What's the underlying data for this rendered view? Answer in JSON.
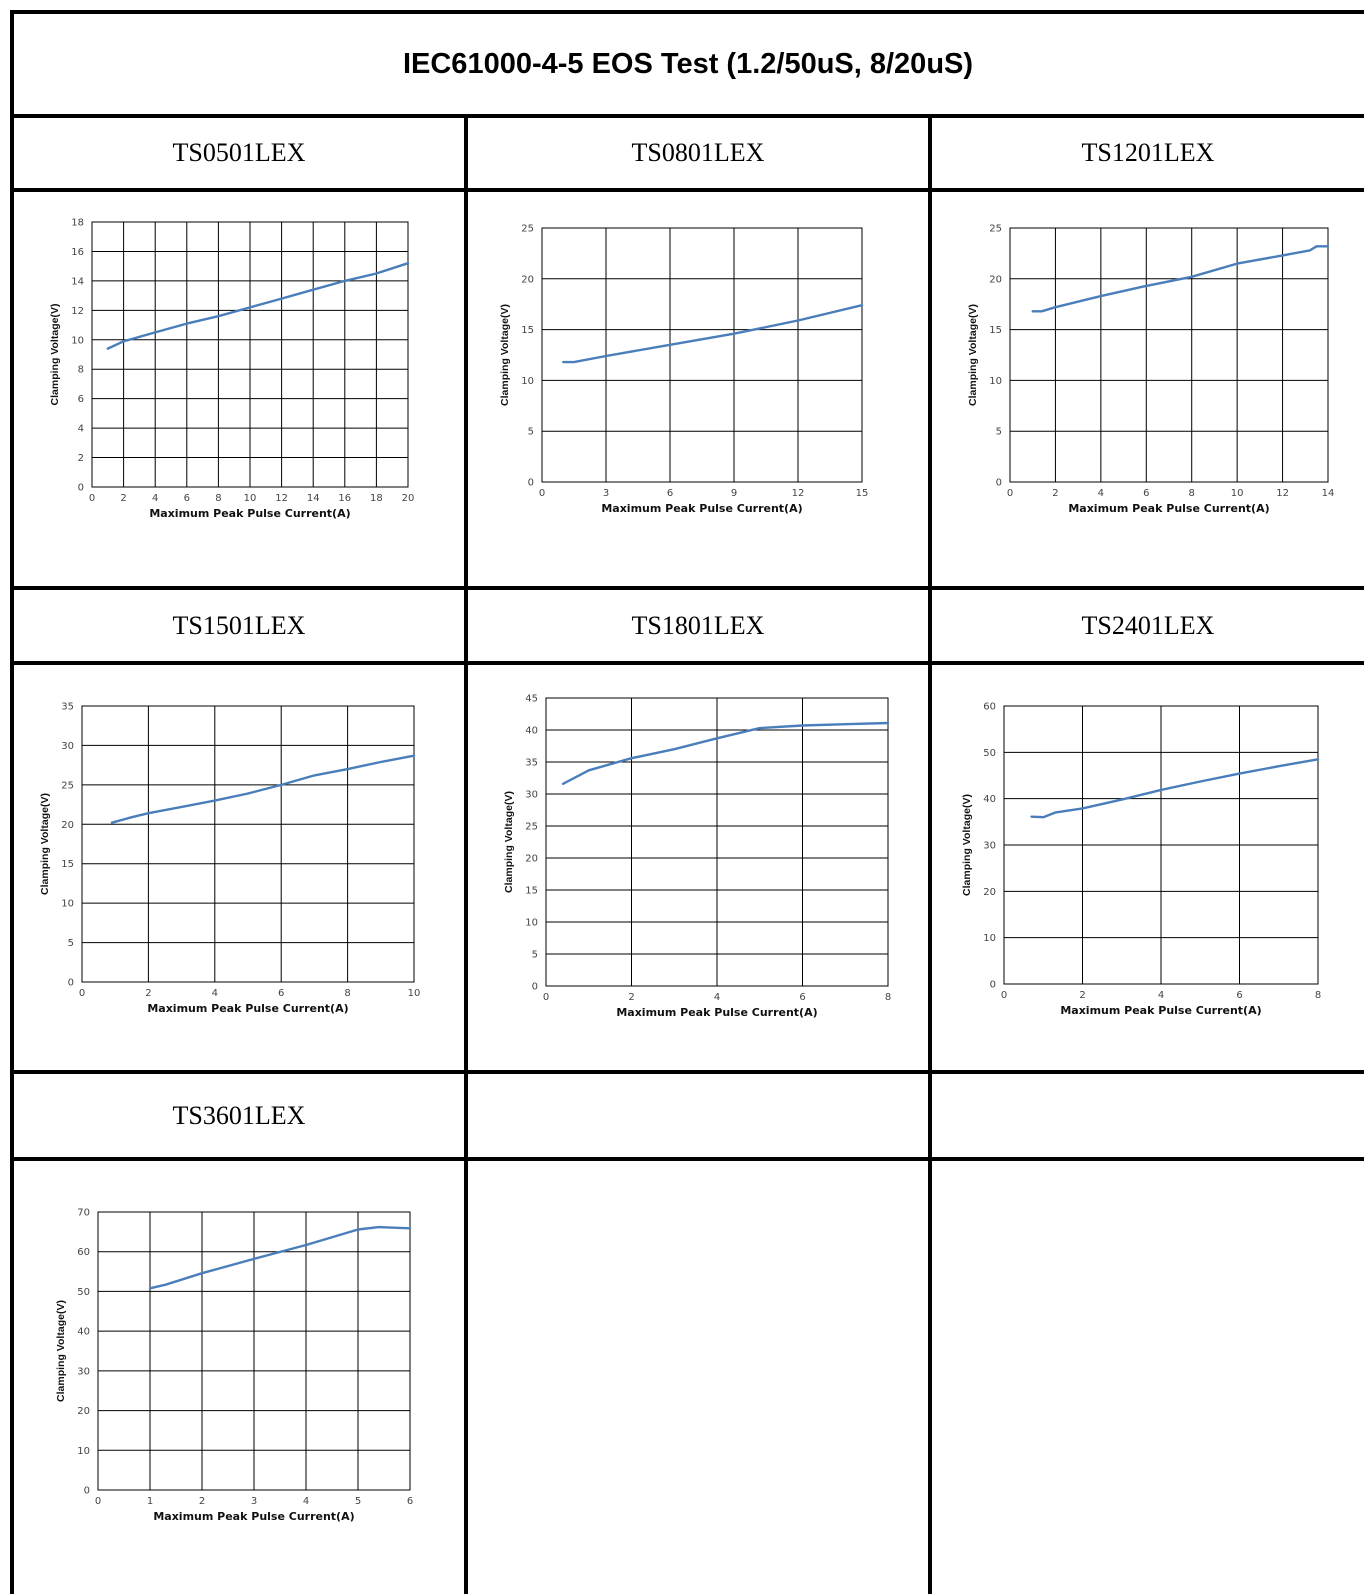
{
  "page_title": "IEC61000-4-5 EOS Test (1.2/50uS, 8/20uS)",
  "line_color": "#4a7ebb",
  "chart_data": [
    {
      "type": "line",
      "label": "TS0501LEX",
      "xlabel": "Maximum Peak Pulse Current(A)",
      "ylabel": "Clamping Voltage(V)",
      "xlim": [
        0,
        20
      ],
      "ylim": [
        0,
        18
      ],
      "xticks": [
        0,
        2,
        4,
        6,
        8,
        10,
        12,
        14,
        16,
        18,
        20
      ],
      "yticks": [
        0,
        2,
        4,
        6,
        8,
        10,
        12,
        14,
        16,
        18
      ],
      "grid": true,
      "x": [
        1,
        2,
        4,
        6,
        8,
        10,
        12,
        14,
        16,
        18,
        20
      ],
      "y": [
        9.4,
        9.9,
        10.5,
        11.1,
        11.6,
        12.2,
        12.8,
        13.4,
        14.0,
        14.5,
        15.2
      ]
    },
    {
      "type": "line",
      "label": "TS0801LEX",
      "xlabel": "Maximum Peak Pulse Current(A)",
      "ylabel": "Clamping Voltage(V)",
      "xlim": [
        0,
        15
      ],
      "ylim": [
        0,
        25
      ],
      "xticks": [
        0,
        3,
        6,
        9,
        12,
        15
      ],
      "yticks": [
        0,
        5,
        10,
        15,
        20,
        25
      ],
      "grid": true,
      "x": [
        1,
        1.5,
        3,
        6,
        9,
        12,
        15
      ],
      "y": [
        11.8,
        11.8,
        12.4,
        13.5,
        14.6,
        15.9,
        17.4
      ]
    },
    {
      "type": "line",
      "label": "TS1201LEX",
      "xlabel": "Maximum Peak Pulse Current(A)",
      "ylabel": "Clamping Voltage(V)",
      "xlim": [
        0,
        14
      ],
      "ylim": [
        0,
        25
      ],
      "xticks": [
        0,
        2,
        4,
        6,
        8,
        10,
        12,
        14
      ],
      "yticks": [
        0,
        5,
        10,
        15,
        20,
        25
      ],
      "grid": true,
      "x": [
        1,
        1.4,
        2,
        4,
        6,
        8,
        10,
        12,
        13.2,
        13.5,
        14
      ],
      "y": [
        16.8,
        16.8,
        17.2,
        18.3,
        19.3,
        20.2,
        21.5,
        22.3,
        22.8,
        23.2,
        23.2
      ]
    },
    {
      "type": "line",
      "label": "TS1501LEX",
      "xlabel": "Maximum Peak Pulse Current(A)",
      "ylabel": "Clamping Voltage(V)",
      "xlim": [
        0,
        10
      ],
      "ylim": [
        0,
        35
      ],
      "xticks": [
        0,
        2,
        4,
        6,
        8,
        10
      ],
      "yticks": [
        0,
        5,
        10,
        15,
        20,
        25,
        30,
        35
      ],
      "grid": true,
      "x": [
        0.9,
        1.5,
        2,
        3,
        4,
        5,
        6,
        7,
        8,
        9,
        10
      ],
      "y": [
        20.2,
        20.9,
        21.4,
        22.2,
        23.0,
        23.9,
        25.0,
        26.2,
        27.0,
        27.9,
        28.7
      ]
    },
    {
      "type": "line",
      "label": "TS1801LEX",
      "xlabel": "Maximum Peak Pulse Current(A)",
      "ylabel": "Clamping Voltage(V)",
      "xlim": [
        0,
        8
      ],
      "ylim": [
        0,
        45
      ],
      "xticks": [
        0,
        2,
        4,
        6,
        8
      ],
      "yticks": [
        0,
        5,
        10,
        15,
        20,
        25,
        30,
        35,
        40,
        45
      ],
      "grid": true,
      "x": [
        0.4,
        1,
        2,
        3,
        4,
        5,
        6,
        7,
        8
      ],
      "y": [
        31.6,
        33.7,
        35.6,
        37.0,
        38.7,
        40.3,
        40.7,
        40.9,
        41.1
      ]
    },
    {
      "type": "line",
      "label": "TS2401LEX",
      "xlabel": "Maximum Peak Pulse Current(A)",
      "ylabel": "Clamping Voltage(V)",
      "xlim": [
        0,
        8
      ],
      "ylim": [
        0,
        60
      ],
      "xticks": [
        0,
        2,
        4,
        6,
        8
      ],
      "yticks": [
        0,
        10,
        20,
        30,
        40,
        50,
        60
      ],
      "grid": true,
      "x": [
        0.7,
        1,
        1.3,
        2,
        3,
        4,
        5,
        6,
        7,
        8
      ],
      "y": [
        36.1,
        36.0,
        37.0,
        37.9,
        39.8,
        41.9,
        43.7,
        45.4,
        47.0,
        48.5
      ]
    },
    {
      "type": "line",
      "label": "TS3601LEX",
      "xlabel": "Maximum Peak Pulse Current(A)",
      "ylabel": "Clamping Voltage(V)",
      "xlim": [
        0,
        6
      ],
      "ylim": [
        0,
        70
      ],
      "xticks": [
        0,
        1,
        2,
        3,
        4,
        5,
        6
      ],
      "yticks": [
        0,
        10,
        20,
        30,
        40,
        50,
        60,
        70
      ],
      "grid": true,
      "x": [
        1,
        1.3,
        2,
        3,
        4,
        5,
        5.4,
        6
      ],
      "y": [
        50.8,
        51.7,
        54.6,
        58.2,
        61.7,
        65.6,
        66.2,
        65.9
      ]
    }
  ]
}
